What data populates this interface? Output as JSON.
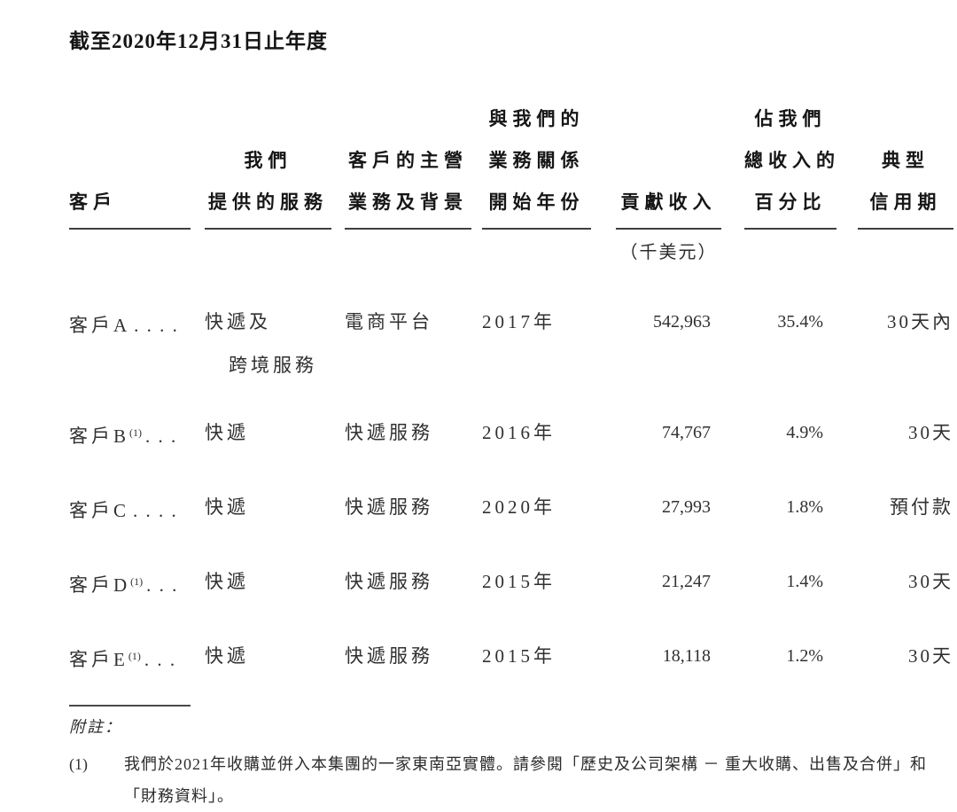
{
  "page": {
    "title": "截至2020年12月31日止年度"
  },
  "table": {
    "columns": [
      {
        "header_lines": [
          "客戶"
        ]
      },
      {
        "header_lines": [
          "我們",
          "提供的服務"
        ]
      },
      {
        "header_lines": [
          "客戶的主營",
          "業務及背景"
        ]
      },
      {
        "header_lines": [
          "與我們的",
          "業務關係",
          "開始年份"
        ]
      },
      {
        "header_lines": [
          "貢獻收入"
        ],
        "subheader": "（千美元）"
      },
      {
        "header_lines": [
          "佔我們",
          "總收入的",
          "百分比"
        ]
      },
      {
        "header_lines": [
          "典型",
          "信用期"
        ]
      }
    ],
    "rows": [
      {
        "customer": "客戶A",
        "sup": "",
        "dots": ". . . .",
        "service": "快遞及",
        "service2": "跨境服務",
        "business": "電商平台",
        "year": "2017年",
        "revenue": "542,963",
        "percent": "35.4%",
        "credit": "30天內"
      },
      {
        "customer": "客戶B",
        "sup": "(1)",
        "dots": ". . .",
        "service": "快遞",
        "business": "快遞服務",
        "year": "2016年",
        "revenue": "74,767",
        "percent": "4.9%",
        "credit": "30天"
      },
      {
        "customer": "客戶C",
        "sup": "",
        "dots": ". . . .",
        "service": "快遞",
        "business": "快遞服務",
        "year": "2020年",
        "revenue": "27,993",
        "percent": "1.8%",
        "credit": "預付款"
      },
      {
        "customer": "客戶D",
        "sup": "(1)",
        "dots": ". . .",
        "service": "快遞",
        "business": "快遞服務",
        "year": "2015年",
        "revenue": "21,247",
        "percent": "1.4%",
        "credit": "30天"
      },
      {
        "customer": "客戶E",
        "sup": "(1)",
        "dots": ". . .",
        "service": "快遞",
        "business": "快遞服務",
        "year": "2015年",
        "revenue": "18,118",
        "percent": "1.2%",
        "credit": "30天"
      }
    ]
  },
  "notes": {
    "heading": "附註：",
    "items": [
      {
        "marker": "(1)",
        "text": "我們於2021年收購並併入本集團的一家東南亞實體。請參閱「歷史及公司架構 － 重大收購、出售及合併」和「財務資料」。"
      }
    ]
  },
  "colors": {
    "background": "#ffffff",
    "text": "#303030",
    "heading_text": "#151515",
    "rule": "#3f3f3f"
  }
}
